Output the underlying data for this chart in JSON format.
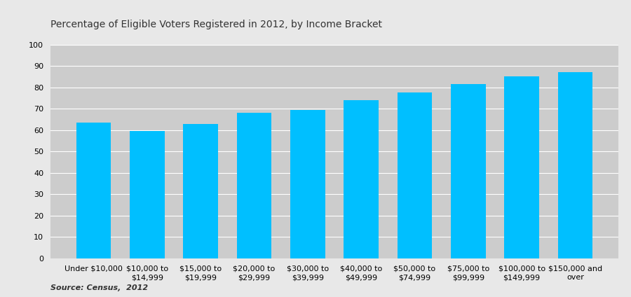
{
  "title": "Percentage of Eligible Voters Registered in 2012, by Income Bracket",
  "categories": [
    "Under $10,000",
    "$10,000 to\n$14,999",
    "$15,000 to\n$19,999",
    "$20,000 to\n$29,999",
    "$30,000 to\n$39,999",
    "$40,000 to\n$49,999",
    "$50,000 to\n$74,999",
    "$75,000 to\n$99,999",
    "$100,000 to\n$149,999",
    "$150,000 and\nover"
  ],
  "values": [
    63.5,
    59.7,
    63.0,
    68.0,
    69.5,
    74.1,
    77.5,
    81.5,
    85.0,
    87.0
  ],
  "bar_color": "#00BFFF",
  "plot_bg_color": "#CCCCCC",
  "fig_bg_color": "#E8E8E8",
  "ylim": [
    0,
    100
  ],
  "yticks": [
    0,
    10,
    20,
    30,
    40,
    50,
    60,
    70,
    80,
    90,
    100
  ],
  "source_text": "Source: Census,  2012",
  "title_fontsize": 10,
  "tick_fontsize": 8,
  "source_fontsize": 8
}
